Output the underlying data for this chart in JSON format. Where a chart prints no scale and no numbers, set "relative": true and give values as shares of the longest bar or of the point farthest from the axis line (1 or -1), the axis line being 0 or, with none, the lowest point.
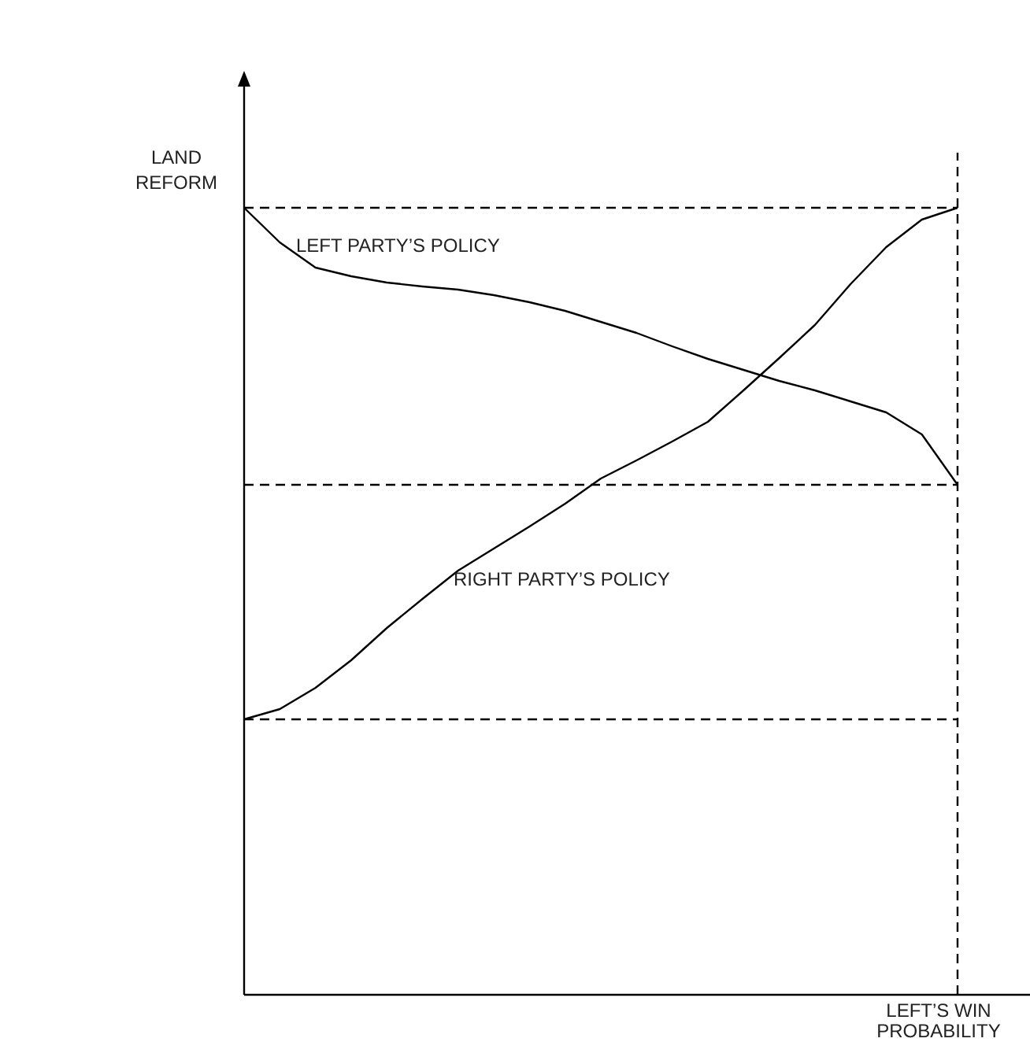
{
  "chart_data": {
    "type": "line",
    "relative": true,
    "xlabel": "LEFT’S WIN PROBABILITY",
    "ylabel": "LAND REFORM",
    "marker": "none",
    "line_style": "solid",
    "categories": [
      null,
      null,
      null,
      null,
      null,
      null,
      null,
      null,
      null,
      null,
      null,
      null,
      null,
      null,
      null,
      null,
      null,
      null,
      null,
      null,
      null
    ],
    "series": [
      {
        "name": "LEFT PARTY’S POLICY",
        "color": "#000000",
        "values": [
          1,
          0.956,
          0.924,
          0.913,
          0.905,
          0.9,
          0.896,
          0.889,
          0.88,
          0.869,
          0.855,
          0.841,
          0.824,
          0.808,
          0.794,
          0.78,
          0.768,
          0.754,
          0.74,
          0.712,
          0.648
        ]
      },
      {
        "name": "RIGHT PARTY’S POLICY",
        "color": "#000000",
        "values": [
          0.35,
          0.363,
          0.39,
          0.425,
          0.466,
          0.503,
          0.539,
          0.567,
          0.595,
          0.624,
          0.656,
          0.679,
          0.703,
          0.728,
          0.768,
          0.809,
          0.851,
          0.903,
          0.95,
          0.985,
          1
        ]
      }
    ],
    "ref_lines": [
      {
        "axis": "y",
        "value": 1,
        "color": "#000000",
        "line_style": "dashed"
      },
      {
        "axis": "y",
        "value": 0.648,
        "color": "#000000",
        "line_style": "dashed"
      },
      {
        "axis": "y",
        "value": 0.35,
        "color": "#000000",
        "line_style": "dashed"
      },
      {
        "axis": "x",
        "color": "#000000",
        "line_style": "dashed"
      }
    ]
  }
}
